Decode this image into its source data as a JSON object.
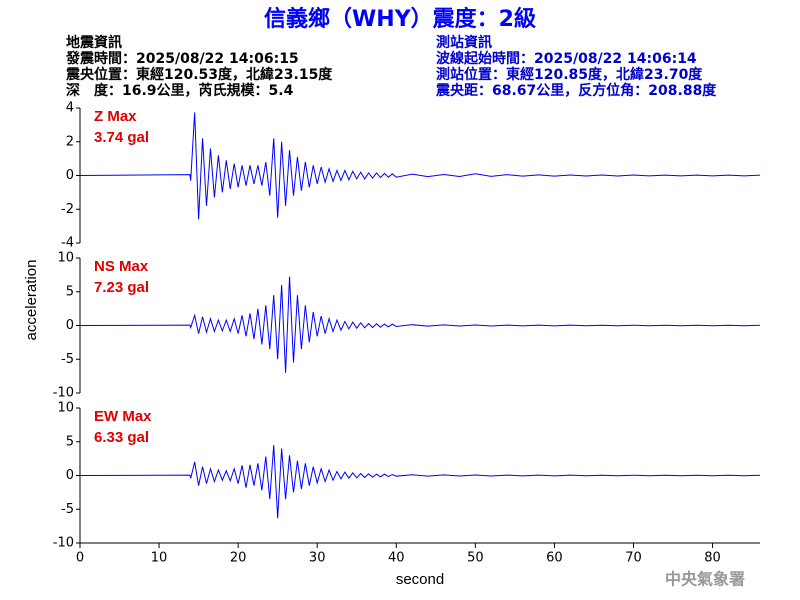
{
  "header": {
    "title": "信義鄉（WHY）震度：2級",
    "left": [
      "地震資訊",
      "發震時間：2025/08/22 14:06:15",
      "震央位置：東經120.53度，北緯23.15度",
      "深　度：16.9公里，芮氏規模：5.4"
    ],
    "right": [
      "測站資訊",
      "波線起始時間：2025/08/22 14:06:14",
      "測站位置：東經120.85度，北緯23.70度",
      "震央距：68.67公里，反方位角：208.88度"
    ],
    "footer": "中央氣象署"
  },
  "ylabel": "acceleration",
  "xlabel": "second",
  "chart_data": [
    {
      "type": "line",
      "title": "Z Max",
      "subtitle": "3.74 gal",
      "color": "#0000ff",
      "xlim": [
        0,
        86
      ],
      "ylim": [
        -4,
        4
      ],
      "yticks": [
        -4,
        -2,
        0,
        2,
        4
      ],
      "x": [
        0,
        13.9,
        14,
        14.5,
        15,
        15.5,
        16,
        16.5,
        17,
        17.5,
        18,
        18.5,
        19,
        19.5,
        20,
        20.5,
        21,
        21.5,
        22,
        22.5,
        23,
        23.5,
        24,
        24.5,
        25,
        25.5,
        26,
        26.5,
        27,
        27.5,
        28,
        28.5,
        29,
        29.5,
        30,
        30.5,
        31,
        31.5,
        32,
        32.5,
        33,
        33.5,
        34,
        34.5,
        35,
        35.5,
        36,
        36.5,
        37,
        37.5,
        38,
        38.5,
        39,
        39.5,
        40,
        42,
        44,
        46,
        48,
        50,
        52,
        54,
        56,
        58,
        60,
        62,
        64,
        66,
        68,
        70,
        72,
        74,
        76,
        78,
        80,
        82,
        84,
        86
      ],
      "values": [
        0,
        0.05,
        -0.3,
        3.74,
        -2.6,
        2.2,
        -1.8,
        1.6,
        -1.3,
        1.2,
        -1.0,
        0.9,
        -0.8,
        0.7,
        -0.7,
        0.6,
        -0.6,
        0.6,
        -0.5,
        0.6,
        -0.6,
        0.8,
        -1.2,
        2.2,
        -2.5,
        2.0,
        -1.8,
        1.5,
        -1.2,
        1.1,
        -0.9,
        0.8,
        -0.7,
        0.6,
        -0.5,
        0.5,
        -0.4,
        0.4,
        -0.35,
        0.3,
        -0.3,
        0.3,
        -0.25,
        0.25,
        -0.2,
        0.2,
        -0.2,
        0.15,
        -0.15,
        0.15,
        -0.12,
        0.12,
        -0.1,
        0.1,
        -0.1,
        0.08,
        -0.07,
        0.06,
        -0.06,
        0.1,
        -0.05,
        0.05,
        -0.04,
        0.04,
        -0.04,
        0.03,
        -0.03,
        0.03,
        -0.03,
        0.03,
        -0.02,
        0.02,
        -0.02,
        0.02,
        -0.02,
        0.02,
        -0.02,
        0.02
      ]
    },
    {
      "type": "line",
      "title": "NS Max",
      "subtitle": "7.23 gal",
      "color": "#0000ff",
      "xlim": [
        0,
        86
      ],
      "ylim": [
        -10,
        10
      ],
      "yticks": [
        -10,
        -5,
        0,
        5,
        10
      ],
      "x": [
        0,
        13.9,
        14,
        14.5,
        15,
        15.5,
        16,
        16.5,
        17,
        17.5,
        18,
        18.5,
        19,
        19.5,
        20,
        20.5,
        21,
        21.5,
        22,
        22.5,
        23,
        23.5,
        24,
        24.5,
        25,
        25.5,
        26,
        26.5,
        27,
        27.5,
        28,
        28.5,
        29,
        29.5,
        30,
        30.5,
        31,
        31.5,
        32,
        32.5,
        33,
        33.5,
        34,
        34.5,
        35,
        35.5,
        36,
        36.5,
        37,
        37.5,
        38,
        38.5,
        39,
        39.5,
        40,
        42,
        44,
        46,
        48,
        50,
        52,
        54,
        56,
        58,
        60,
        62,
        64,
        66,
        68,
        70,
        72,
        74,
        76,
        78,
        80,
        82,
        84,
        86
      ],
      "values": [
        0,
        0.05,
        -0.3,
        1.5,
        -1.2,
        1.3,
        -1.0,
        1.0,
        -0.9,
        0.8,
        -0.8,
        0.8,
        -0.9,
        1.0,
        -1.2,
        1.5,
        -1.6,
        1.8,
        -2.0,
        2.5,
        -2.8,
        3.0,
        -3.5,
        4.5,
        -5.0,
        6.0,
        -7.0,
        7.23,
        -5.5,
        4.5,
        -3.5,
        3.0,
        -2.5,
        2.0,
        -1.6,
        1.4,
        -1.2,
        1.0,
        -0.9,
        0.8,
        -0.7,
        0.6,
        -0.5,
        0.5,
        -0.4,
        0.4,
        -0.35,
        0.3,
        -0.3,
        0.25,
        -0.25,
        0.2,
        -0.2,
        0.2,
        -0.15,
        0.12,
        -0.1,
        0.1,
        -0.08,
        0.08,
        -0.07,
        0.06,
        -0.06,
        0.05,
        -0.05,
        0.05,
        -0.04,
        0.04,
        -0.04,
        0.04,
        -0.03,
        0.03,
        -0.03,
        0.03,
        -0.03,
        0.03,
        -0.03,
        0.03
      ]
    },
    {
      "type": "line",
      "title": "EW Max",
      "subtitle": "6.33 gal",
      "color": "#0000ff",
      "xlim": [
        0,
        86
      ],
      "xticks": [
        0,
        10,
        20,
        30,
        40,
        50,
        60,
        70,
        80
      ],
      "ylim": [
        -10,
        10
      ],
      "yticks": [
        -10,
        -5,
        0,
        5,
        10
      ],
      "x": [
        0,
        13.9,
        14,
        14.5,
        15,
        15.5,
        16,
        16.5,
        17,
        17.5,
        18,
        18.5,
        19,
        19.5,
        20,
        20.5,
        21,
        21.5,
        22,
        22.5,
        23,
        23.5,
        24,
        24.5,
        25,
        25.5,
        26,
        26.5,
        27,
        27.5,
        28,
        28.5,
        29,
        29.5,
        30,
        30.5,
        31,
        31.5,
        32,
        32.5,
        33,
        33.5,
        34,
        34.5,
        35,
        35.5,
        36,
        36.5,
        37,
        37.5,
        38,
        38.5,
        39,
        39.5,
        40,
        42,
        44,
        46,
        48,
        50,
        52,
        54,
        56,
        58,
        60,
        62,
        64,
        66,
        68,
        70,
        72,
        74,
        76,
        78,
        80,
        82,
        84,
        86
      ],
      "values": [
        0,
        0.05,
        -0.4,
        2.0,
        -1.5,
        1.3,
        -1.2,
        1.0,
        -0.9,
        0.8,
        -0.7,
        0.7,
        -0.8,
        1.0,
        -1.2,
        1.5,
        -1.8,
        1.6,
        -1.5,
        1.8,
        -2.2,
        2.8,
        -3.5,
        4.5,
        -6.33,
        4.0,
        -3.5,
        3.0,
        -2.5,
        2.2,
        -2.0,
        1.8,
        -1.5,
        1.3,
        -1.1,
        1.0,
        -0.9,
        0.8,
        -0.7,
        0.6,
        -0.5,
        0.5,
        -0.4,
        0.4,
        -0.35,
        0.3,
        -0.3,
        0.25,
        -0.25,
        0.2,
        -0.2,
        0.2,
        -0.15,
        0.15,
        -0.1,
        0.12,
        -0.1,
        0.1,
        -0.08,
        0.08,
        -0.07,
        0.06,
        -0.06,
        0.05,
        -0.05,
        0.05,
        -0.04,
        0.04,
        -0.04,
        0.04,
        -0.03,
        0.03,
        -0.03,
        0.03,
        -0.03,
        0.03,
        -0.03,
        0.03
      ]
    }
  ]
}
